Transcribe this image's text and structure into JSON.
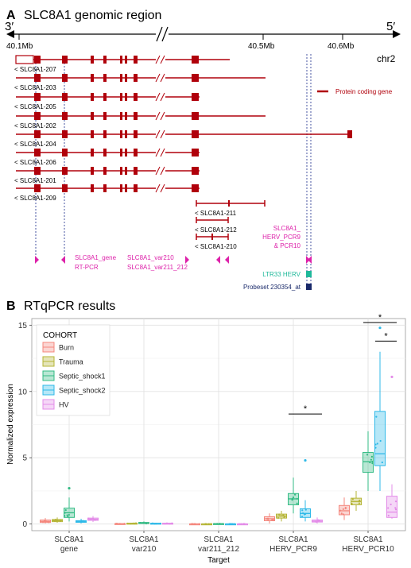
{
  "panelA": {
    "letter": "A",
    "title": "SLC8A1 genomic region",
    "strand_left": "3′",
    "strand_right": "5′",
    "scale_ticks": [
      "40.1Mb",
      "40.5Mb",
      "40.6Mb"
    ],
    "chromosome": "chr2",
    "legend_label": "Protein coding gene",
    "transcripts": [
      "< SLC8A1-207",
      "< SLC8A1-203",
      "< SLC8A1-205",
      "< SLC8A1-202",
      "< SLC8A1-204",
      "< SLC8A1-206",
      "< SLC8A1-201",
      "< SLC8A1-209",
      "< SLC8A1-211",
      "< SLC8A1-212",
      "< SLC8A1-210"
    ],
    "primer_labels": {
      "gene_line1": "SLC8A1_gene",
      "gene_line2": "RT-PCR",
      "var_line1": "SLC8A1_var210",
      "var_line2": "SLC8A1_var211_212",
      "herv_line1": "SLC8A1_",
      "herv_line2": "HERV_PCR9",
      "herv_line3": "& PCR10"
    },
    "ltr_label": "LTR33 HERV",
    "probeset_label": "Probeset 230354_at",
    "colors": {
      "gene": "#b0000b",
      "primer": "#dd22aa",
      "ltr": "#1fb99a",
      "probeset": "#1a2a6a"
    }
  },
  "panelB": {
    "letter": "B",
    "title": "RTqPCR results",
    "chart_data": {
      "type": "box",
      "xlabel": "Target",
      "ylabel": "Normalized expression",
      "ylim": [
        -0.5,
        15.5
      ],
      "yticks": [
        "0",
        "5",
        "10",
        "15"
      ],
      "categories": [
        {
          "line1": "SLC8A1",
          "line2": "gene"
        },
        {
          "line1": "SLC8A1",
          "line2": "var210"
        },
        {
          "line1": "SLC8A1",
          "line2": "var211_212"
        },
        {
          "line1": "SLC8A1",
          "line2": "HERV_PCR9"
        },
        {
          "line1": "SLC8A1",
          "line2": "HERV_PCR10"
        }
      ],
      "legend_title": "COHORT",
      "legend_position": "top-left",
      "grid": true,
      "series": [
        {
          "name": "Burn",
          "color": "#f4877d",
          "boxes": [
            [
              0.05,
              0.12,
              0.2,
              0.3,
              0.45
            ],
            [
              0,
              0.01,
              0.02,
              0.03,
              0.05
            ],
            [
              0,
              0,
              0.01,
              0.01,
              0.02
            ],
            [
              0.05,
              0.25,
              0.4,
              0.55,
              0.8
            ],
            [
              0.3,
              0.7,
              1.0,
              1.4,
              2.0
            ]
          ]
        },
        {
          "name": "Trauma",
          "color": "#b5b536",
          "boxes": [
            [
              0.1,
              0.18,
              0.26,
              0.34,
              0.5
            ],
            [
              0,
              0.02,
              0.04,
              0.06,
              0.1
            ],
            [
              0,
              0,
              0.01,
              0.01,
              0.02
            ],
            [
              0.2,
              0.45,
              0.6,
              0.75,
              1.0
            ],
            [
              1.0,
              1.45,
              1.7,
              1.95,
              2.5
            ]
          ]
        },
        {
          "name": "Septic_shock1",
          "color": "#33bb84",
          "boxes": [
            [
              0.2,
              0.5,
              0.85,
              1.2,
              2.0
            ],
            [
              0,
              0.04,
              0.08,
              0.12,
              0.2
            ],
            [
              0,
              0.01,
              0.02,
              0.03,
              0.05
            ],
            [
              0.8,
              1.45,
              1.9,
              2.3,
              3.5
            ],
            [
              2.5,
              3.9,
              4.7,
              5.4,
              7.0
            ]
          ]
        },
        {
          "name": "Septic_shock2",
          "color": "#2fb9e8",
          "boxes": [
            [
              0.05,
              0.13,
              0.19,
              0.25,
              0.4
            ],
            [
              0,
              0.02,
              0.04,
              0.06,
              0.1
            ],
            [
              0,
              0,
              0.01,
              0.01,
              0.02
            ],
            [
              0.2,
              0.5,
              0.8,
              1.15,
              1.8
            ],
            [
              2.5,
              4.4,
              5.3,
              8.5,
              13.0
            ]
          ]
        },
        {
          "name": "HV",
          "color": "#e38ce8",
          "boxes": [
            [
              0.15,
              0.28,
              0.36,
              0.45,
              0.6
            ],
            [
              0,
              0.02,
              0.04,
              0.06,
              0.1
            ],
            [
              0,
              0,
              0.01,
              0.01,
              0.02
            ],
            [
              0.05,
              0.15,
              0.22,
              0.3,
              0.5
            ],
            [
              0.4,
              0.5,
              0.9,
              2.1,
              3.0
            ]
          ]
        }
      ],
      "outliers": [
        {
          "category": 0,
          "series": 2,
          "y": 2.7
        },
        {
          "category": 3,
          "series": 3,
          "y": 4.8
        },
        {
          "category": 4,
          "series": 3,
          "y": 14.8
        },
        {
          "category": 4,
          "series": 4,
          "y": 11.1
        }
      ],
      "significance": [
        {
          "label": "*",
          "category": 3,
          "from_series": 2,
          "to_series": 4,
          "y": 8.3
        },
        {
          "label": "*",
          "category": 4,
          "from_series": 2,
          "to_series": 4,
          "y": 15.2
        },
        {
          "label": "*",
          "category": 4,
          "from_series": 3,
          "to_series": 4,
          "y": 13.8
        }
      ]
    }
  }
}
